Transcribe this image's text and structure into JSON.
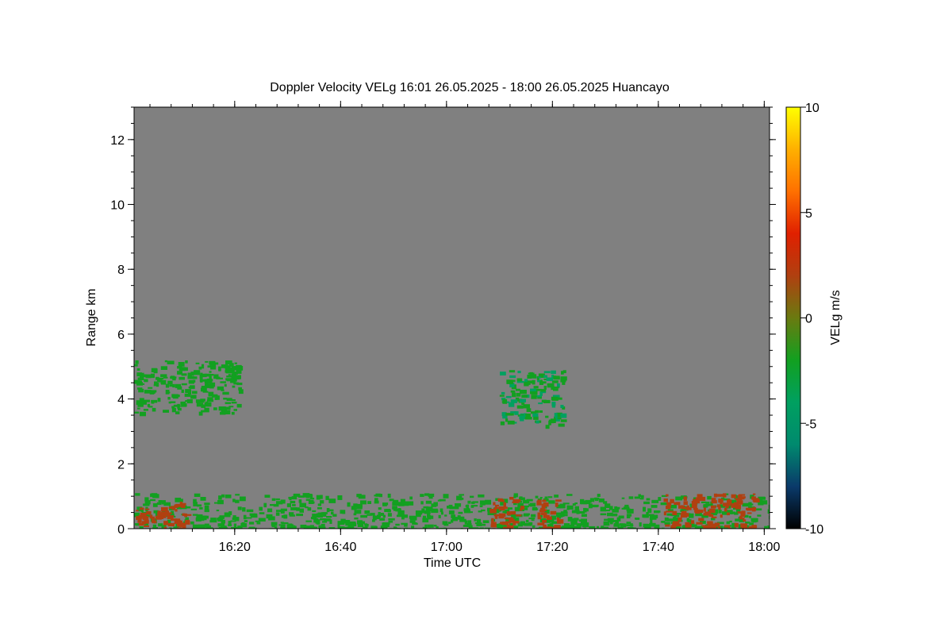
{
  "chart_data": {
    "type": "heatmap",
    "title": "Doppler Velocity VELg   16:01 26.05.2025 - 18:00 26.05.2025 Huancayo",
    "xlabel": "Time UTC",
    "ylabel": "Range km",
    "x_ticks": [
      "16:20",
      "16:40",
      "17:00",
      "17:20",
      "17:40",
      "18:00"
    ],
    "y_ticks": [
      "0",
      "2",
      "4",
      "6",
      "8",
      "10",
      "12"
    ],
    "x_range_minutes": [
      0,
      120
    ],
    "y_range_km": [
      0,
      13
    ],
    "colorbar": {
      "label": "VELg m/s",
      "range": [
        -10,
        10
      ],
      "ticks": [
        "10",
        "5",
        "0",
        "-5",
        "-10"
      ],
      "colors": [
        "#000000",
        "#0a3a6a",
        "#008a6e",
        "#00a060",
        "#12a020",
        "#6a7a10",
        "#b04010",
        "#e02000",
        "#ff7000",
        "#ffb000",
        "#ffff00"
      ]
    },
    "background_color": "#808080",
    "features": [
      {
        "x_minutes": [
          0,
          20
        ],
        "range_km": [
          3.6,
          5.2
        ],
        "velocity_ms": -1.5
      },
      {
        "x_minutes": [
          69,
          81
        ],
        "range_km": [
          3.2,
          4.9
        ],
        "velocity_ms": -2
      },
      {
        "x_minutes": [
          0,
          120
        ],
        "range_km": [
          0,
          1.1
        ],
        "velocity_ms": -1.5
      },
      {
        "x_minutes": [
          0,
          10
        ],
        "range_km": [
          0,
          0.9
        ],
        "velocity_ms": 2.5
      },
      {
        "x_minutes": [
          67,
          73
        ],
        "range_km": [
          0,
          1.0
        ],
        "velocity_ms": 2.5
      },
      {
        "x_minutes": [
          76,
          80
        ],
        "range_km": [
          0,
          0.9
        ],
        "velocity_ms": 2.5
      },
      {
        "x_minutes": [
          100,
          117
        ],
        "range_km": [
          0,
          1.1
        ],
        "velocity_ms": 2.5
      }
    ]
  }
}
